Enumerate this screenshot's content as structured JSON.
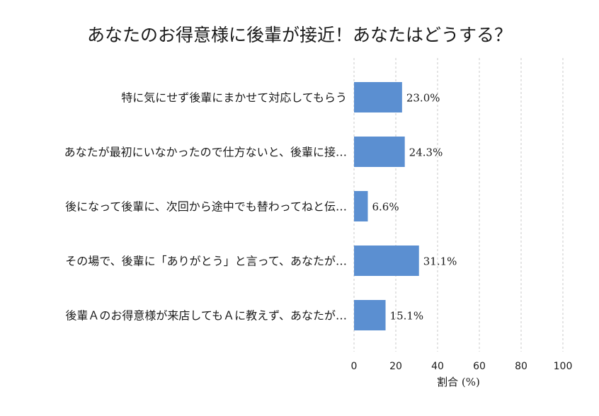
{
  "chart_data": {
    "type": "bar",
    "orientation": "horizontal",
    "title": "あなたのお得意様に後輩が接近！あなたはどうする？",
    "xlabel": "割合 (%)",
    "ylabel": "",
    "xlim": [
      0,
      100
    ],
    "xticks": [
      "0",
      "20",
      "40",
      "60",
      "80",
      "100"
    ],
    "grid": "vertical dashed",
    "bar_color": "#5b8fd1",
    "categories": [
      "特に気にせず後輩にまかせて対応してもらう",
      "あなたが最初にいなかったので仕方ないと、後輩に接…",
      "後になって後輩に、次回から途中でも替わってねと伝…",
      "その場で、後輩に「ありがとう」と言って、あなたが…",
      "後輩Ａのお得意様が来店してもＡに教えず、あなたが…"
    ],
    "values": [
      23.0,
      24.3,
      6.6,
      31.1,
      15.1
    ],
    "value_labels": [
      "23.0%",
      "24.3%",
      "6.6%",
      "31.1%",
      "15.1%"
    ]
  }
}
